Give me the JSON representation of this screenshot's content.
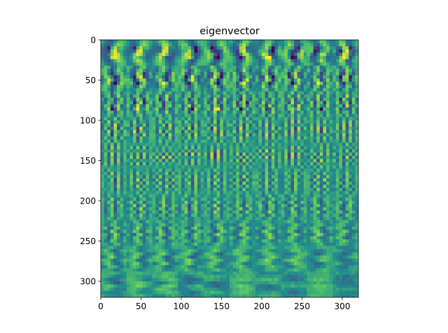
{
  "chart_data": {
    "type": "heatmap",
    "title": "eigenvector",
    "xlabel": "",
    "ylabel": "",
    "xlim": [
      0,
      320
    ],
    "ylim": [
      320,
      0
    ],
    "grid": false,
    "x_ticks": [
      0,
      50,
      100,
      150,
      200,
      250,
      300
    ],
    "y_ticks": [
      0,
      50,
      100,
      150,
      200,
      250,
      300
    ],
    "tile_size": 32,
    "tiles_per_row": 10,
    "tile_rows": 10,
    "colormap": "viridis",
    "colors": {
      "background": "#22a784",
      "low": "#3b528b",
      "mid": "#21918c",
      "high": "#fde725",
      "axis": "#000000"
    }
  }
}
